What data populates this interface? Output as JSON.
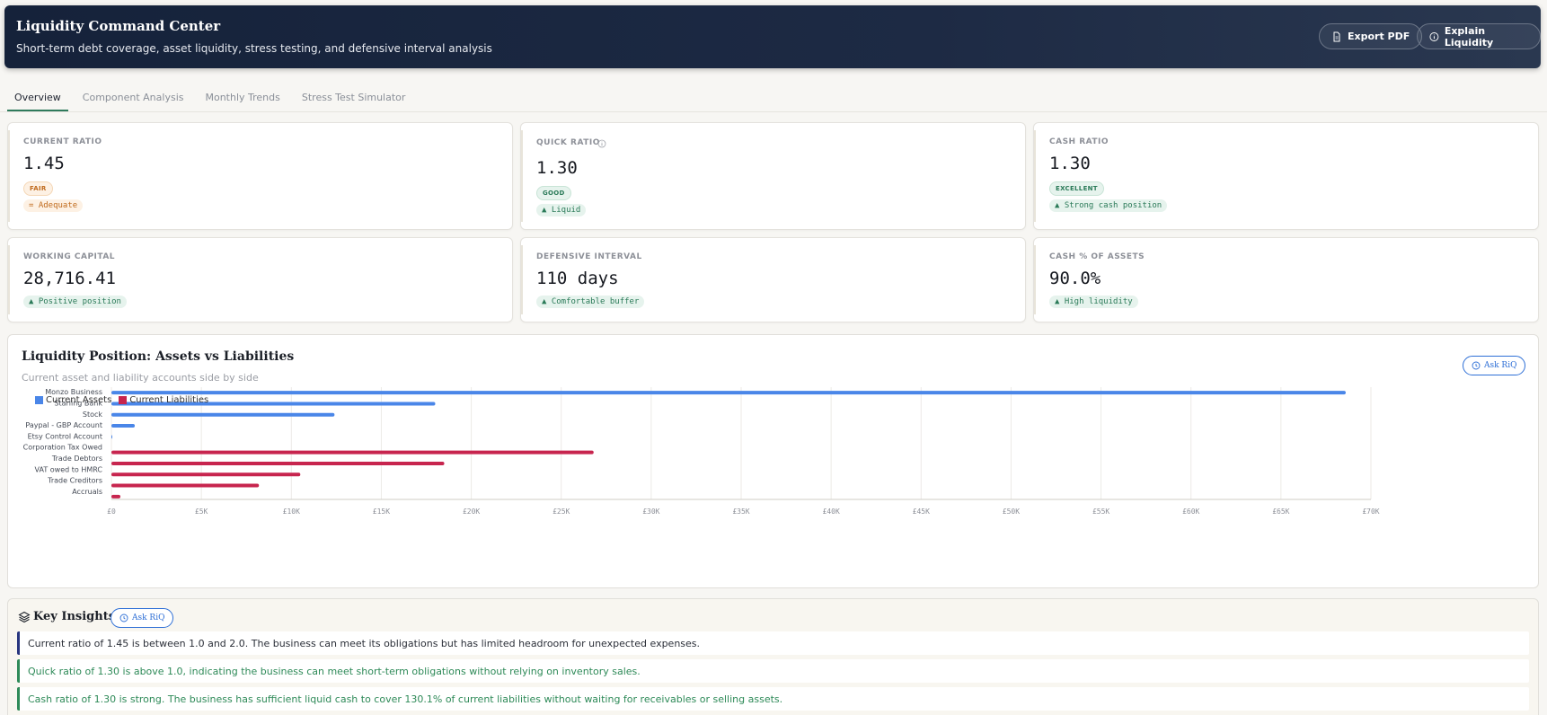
{
  "header": {
    "title": "Liquidity Command Center",
    "subtitle": "Short-term debt coverage, asset liquidity, stress testing, and defensive interval analysis",
    "export_label": "Export PDF",
    "explain_label": "Explain Liquidity"
  },
  "tabs": [
    {
      "label": "Overview",
      "active": true
    },
    {
      "label": "Component Analysis",
      "active": false
    },
    {
      "label": "Monthly Trends",
      "active": false
    },
    {
      "label": "Stress Test Simulator",
      "active": false
    }
  ],
  "kpis": {
    "current_ratio": {
      "label": "CURRENT RATIO",
      "value": "1.45",
      "badge": "FAIR",
      "trend": "= Adequate"
    },
    "quick_ratio": {
      "label": "QUICK RATIO",
      "value": "1.30",
      "badge": "GOOD",
      "trend": "▲ Liquid"
    },
    "cash_ratio": {
      "label": "CASH RATIO",
      "value": "1.30",
      "badge": "EXCELLENT",
      "trend": "▲ Strong cash position"
    },
    "working_capital": {
      "label": "WORKING CAPITAL",
      "value": "28,716.41",
      "trend": "▲ Positive position"
    },
    "defensive_interval": {
      "label": "DEFENSIVE INTERVAL",
      "value": "110 days",
      "trend": "▲ Comfortable buffer"
    },
    "cash_pct_assets": {
      "label": "CASH % OF ASSETS",
      "value": "90.0%",
      "trend": "▲ High liquidity"
    }
  },
  "chart": {
    "title": "Liquidity Position: Assets vs Liabilities",
    "subtitle": "Current asset and liability accounts side by side",
    "ask_label": "Ask RiQ"
  },
  "chart_data": {
    "type": "bar",
    "orientation": "horizontal",
    "categories": [
      "Monzo Business",
      "Starling Bank",
      "Stock",
      "Paypal - GBP Account",
      "Etsy Control Account",
      "Corporation Tax Owed",
      "Trade Debtors",
      "VAT owed to HMRC",
      "Trade Creditors",
      "Accruals"
    ],
    "series": [
      {
        "name": "Current Assets",
        "color": "#4a86e8",
        "values": [
          68600,
          18000,
          12400,
          1300,
          0,
          null,
          null,
          null,
          null,
          null
        ]
      },
      {
        "name": "Current Liabilities",
        "color": "#c7254e",
        "values": [
          null,
          null,
          null,
          null,
          null,
          26800,
          18500,
          10500,
          8200,
          500
        ]
      }
    ],
    "x_ticks": [
      "£0",
      "£5K",
      "£10K",
      "£15K",
      "£20K",
      "£25K",
      "£30K",
      "£35K",
      "£40K",
      "£45K",
      "£50K",
      "£55K",
      "£60K",
      "£65K",
      "£70K"
    ],
    "xlim": [
      0,
      70000
    ],
    "grid": true,
    "legend_position": "top-left"
  },
  "insights": {
    "title": "Key Insights",
    "ask_label": "Ask RiQ",
    "items": [
      {
        "text": "Current ratio of 1.45 is between 1.0 and 2.0. The business can meet its obligations but has limited headroom for unexpected expenses.",
        "tone": "neutral"
      },
      {
        "text": "Quick ratio of 1.30 is above 1.0, indicating the business can meet short-term obligations without relying on inventory sales.",
        "tone": "good"
      },
      {
        "text": "Cash ratio of 1.30 is strong. The business has sufficient liquid cash to cover 130.1% of current liabilities without waiting for receivables or selling assets.",
        "tone": "good"
      }
    ]
  }
}
